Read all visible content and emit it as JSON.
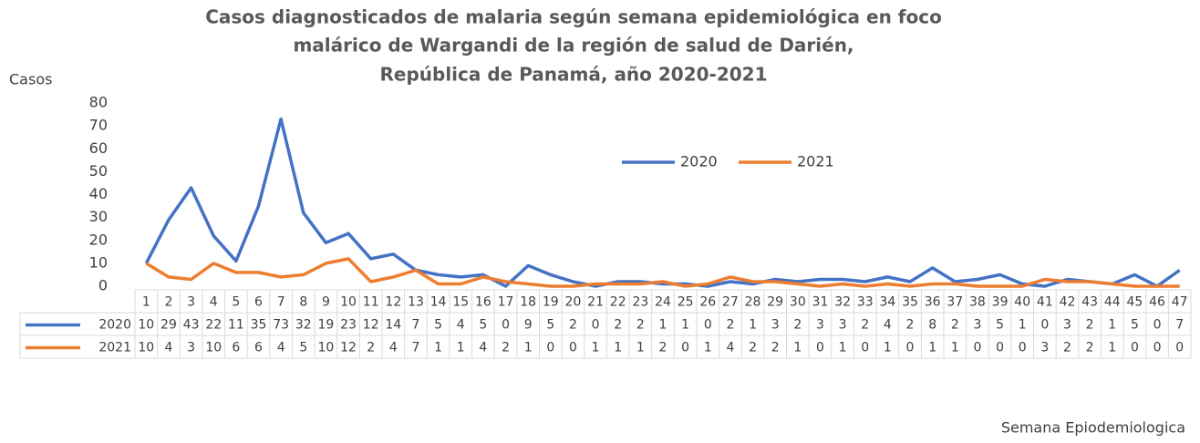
{
  "chart_data": {
    "type": "line",
    "title": [
      "Casos diagnosticados de malaria según semana epidemiológica en foco",
      "malárico de Wargandi de la región de salud de Darién,",
      "República de Panamá, año 2020-2021"
    ],
    "y_label": "Casos",
    "x_label": "Semana Epiodemiologica",
    "categories": [
      1,
      2,
      3,
      4,
      5,
      6,
      7,
      8,
      9,
      10,
      11,
      12,
      13,
      14,
      15,
      16,
      17,
      18,
      19,
      20,
      21,
      22,
      23,
      24,
      25,
      26,
      27,
      28,
      29,
      30,
      31,
      32,
      33,
      34,
      35,
      36,
      37,
      38,
      39,
      40,
      41,
      42,
      43,
      44,
      45,
      46,
      47
    ],
    "series": [
      {
        "name": "2020",
        "color": "#4472c4",
        "values": [
          10,
          29,
          43,
          22,
          11,
          35,
          73,
          32,
          19,
          23,
          12,
          14,
          7,
          5,
          4,
          5,
          0,
          9,
          5,
          2,
          0,
          2,
          2,
          1,
          1,
          0,
          2,
          1,
          3,
          2,
          3,
          3,
          2,
          4,
          2,
          8,
          2,
          3,
          5,
          1,
          0,
          3,
          2,
          1,
          5,
          0,
          7
        ]
      },
      {
        "name": "2021",
        "color": "#ed7d31",
        "values": [
          10,
          4,
          3,
          10,
          6,
          6,
          4,
          5,
          10,
          12,
          2,
          4,
          7,
          1,
          1,
          4,
          2,
          1,
          0,
          0,
          1,
          1,
          1,
          2,
          0,
          1,
          4,
          2,
          2,
          1,
          0,
          1,
          0,
          1,
          0,
          1,
          1,
          0,
          0,
          0,
          3,
          2,
          2,
          1,
          0,
          0,
          0
        ]
      }
    ],
    "ylim": [
      0,
      80
    ],
    "yticks": [
      0,
      10,
      20,
      30,
      40,
      50,
      60,
      70,
      80
    ],
    "grid": false
  }
}
